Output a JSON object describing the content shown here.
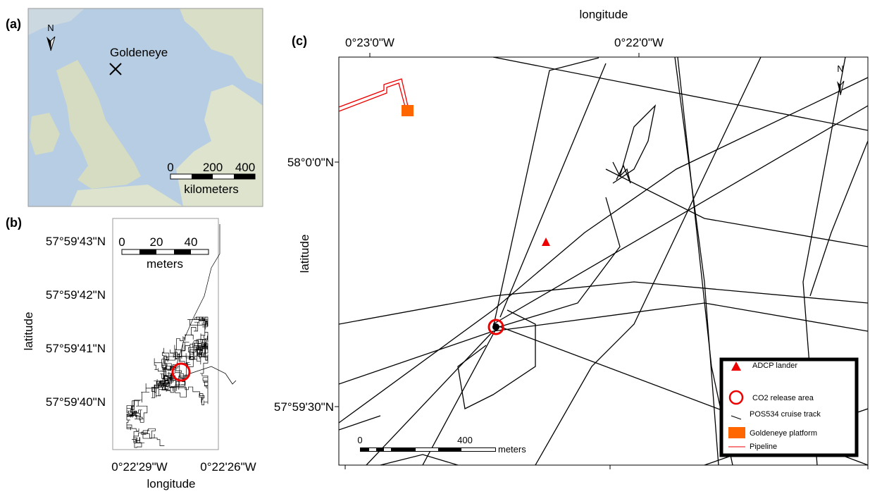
{
  "panel_a": {
    "label": "(a)",
    "north": "N",
    "site": "Goldeneye",
    "scale": [
      "0",
      "200",
      "400"
    ],
    "scale_unit": "kilometers"
  },
  "panel_b": {
    "label": "(b)",
    "y_labels": [
      "57°59'43\"N",
      "57°59'42\"N",
      "57°59'41\"N",
      "57°59'40\"N"
    ],
    "x_labels": [
      "0°22'29\"W",
      "0°22'26\"W"
    ],
    "x_axis": "longitude",
    "y_axis": "latitude",
    "scale": [
      "0",
      "20",
      "40"
    ],
    "scale_unit": "meters"
  },
  "panel_c": {
    "label": "(c)",
    "x_axis": "longitude",
    "y_axis": "latitude",
    "x_labels": [
      "0°23'0\"W",
      "0°22'0\"W"
    ],
    "y_labels": [
      "58°0'0\"N",
      "57°59'30\"N"
    ],
    "north": "N",
    "scale": [
      "0",
      "400"
    ],
    "scale_unit": "meters",
    "legend": [
      "ADCP lander",
      "CO2 release area",
      "POS534 cruise track",
      "Goldeneye platform",
      "Pipeline"
    ]
  }
}
